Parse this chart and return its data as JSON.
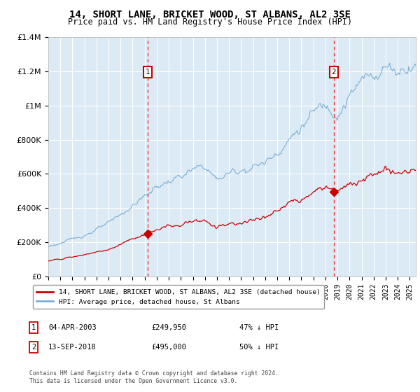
{
  "title": "14, SHORT LANE, BRICKET WOOD, ST ALBANS, AL2 3SE",
  "subtitle": "Price paid vs. HM Land Registry's House Price Index (HPI)",
  "title_fontsize": 10,
  "subtitle_fontsize": 8.5,
  "ylim": [
    0,
    1400000
  ],
  "yticks": [
    0,
    200000,
    400000,
    600000,
    800000,
    1000000,
    1200000,
    1400000
  ],
  "ytick_labels": [
    "£0",
    "£200K",
    "£400K",
    "£600K",
    "£800K",
    "£1M",
    "£1.2M",
    "£1.4M"
  ],
  "background_color": "#ffffff",
  "plot_bg_color": "#dceaf5",
  "grid_color": "#ffffff",
  "purchase1_date_x": 2003.25,
  "purchase1_price": 249950,
  "purchase2_date_x": 2018.7,
  "purchase2_price": 495000,
  "line_red_color": "#cc0000",
  "line_blue_color": "#7bafd4",
  "legend_line1": "14, SHORT LANE, BRICKET WOOD, ST ALBANS, AL2 3SE (detached house)",
  "legend_line2": "HPI: Average price, detached house, St Albans",
  "table_row1": [
    "1",
    "04-APR-2003",
    "£249,950",
    "47% ↓ HPI"
  ],
  "table_row2": [
    "2",
    "13-SEP-2018",
    "£495,000",
    "50% ↓ HPI"
  ],
  "footer": "Contains HM Land Registry data © Crown copyright and database right 2024.\nThis data is licensed under the Open Government Licence v3.0.",
  "xmin": 1995,
  "xmax": 2025.5
}
